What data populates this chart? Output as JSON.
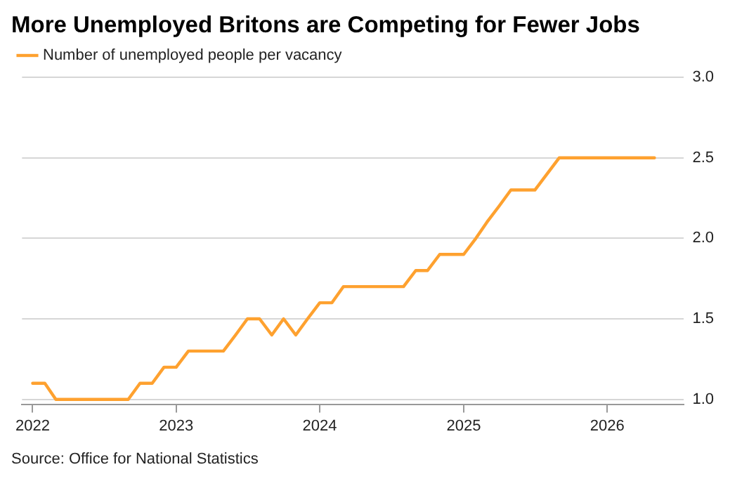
{
  "chart_data": {
    "type": "line",
    "title": "More Unemployed Britons are Competing for Fewer Jobs",
    "x": [
      "2022-01",
      "2022-02",
      "2022-03",
      "2022-04",
      "2022-05",
      "2022-06",
      "2022-07",
      "2022-08",
      "2022-09",
      "2022-10",
      "2022-11",
      "2022-12",
      "2023-01",
      "2023-02",
      "2023-03",
      "2023-04",
      "2023-05",
      "2023-06",
      "2023-07",
      "2023-08",
      "2023-09",
      "2023-10",
      "2023-11",
      "2023-12",
      "2024-01",
      "2024-02",
      "2024-03",
      "2024-04",
      "2024-05",
      "2024-06",
      "2024-07",
      "2024-08",
      "2024-09",
      "2024-10",
      "2024-11",
      "2024-12",
      "2025-01",
      "2025-02",
      "2025-03",
      "2025-04",
      "2025-05",
      "2025-06",
      "2025-07",
      "2025-08",
      "2025-09",
      "2025-10",
      "2025-11",
      "2025-12",
      "2026-01",
      "2026-02",
      "2026-03",
      "2026-04",
      "2026-05"
    ],
    "series": [
      {
        "name": "Number of unemployed people per vacancy",
        "color": "#fea12f",
        "values": [
          1.1,
          1.1,
          1.0,
          1.0,
          1.0,
          1.0,
          1.0,
          1.0,
          1.0,
          1.1,
          1.1,
          1.2,
          1.2,
          1.3,
          1.3,
          1.3,
          1.3,
          1.4,
          1.5,
          1.5,
          1.4,
          1.5,
          1.4,
          1.5,
          1.6,
          1.6,
          1.7,
          1.7,
          1.7,
          1.7,
          1.7,
          1.7,
          1.8,
          1.8,
          1.9,
          1.9,
          1.9,
          2.0,
          2.1,
          2.2,
          2.3,
          2.3,
          2.3,
          2.4,
          2.5,
          2.5,
          2.5,
          2.5,
          2.5,
          2.5,
          2.5,
          2.5,
          2.5
        ]
      }
    ],
    "xlim": [
      "2021-12-05",
      "2026-07-15"
    ],
    "xticks": [
      {
        "value": "2022-01",
        "label": "2022"
      },
      {
        "value": "2023-01",
        "label": "2023"
      },
      {
        "value": "2024-01",
        "label": "2024"
      },
      {
        "value": "2025-01",
        "label": "2025"
      },
      {
        "value": "2026-01",
        "label": "2026"
      }
    ],
    "ylim": [
      0.97,
      3.0
    ],
    "yticks": [
      {
        "value": 1,
        "label": "1.0"
      },
      {
        "value": 1.5,
        "label": "1.5"
      },
      {
        "value": 2,
        "label": "2.0"
      },
      {
        "value": 2.5,
        "label": "2.5"
      },
      {
        "value": 3,
        "label": "3.0"
      }
    ],
    "grid": "y",
    "legend": "top left",
    "marker": "none",
    "line_style": "solid",
    "annotations": [
      "Source: Office for National Statistics"
    ]
  }
}
